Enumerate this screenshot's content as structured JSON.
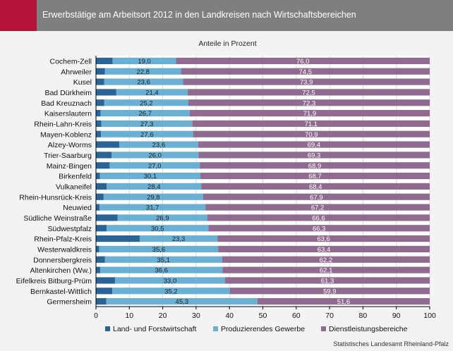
{
  "header": {
    "title": "Erwerbstätige am Arbeitsort 2012 in den Landkreisen nach Wirtschaftsbereichen"
  },
  "colors": {
    "accent": "#b5123a",
    "header_bg": "#7f7f7f",
    "background": "#f3f3f3"
  },
  "source": "Statistisches Landesamt Rheinland-Pfalz",
  "chart_data": {
    "type": "bar",
    "orientation": "horizontal",
    "stacked": true,
    "subtitle": "Anteile in Prozent",
    "xlim": [
      0,
      100
    ],
    "xticks": [
      0,
      10,
      20,
      30,
      40,
      50,
      60,
      70,
      80,
      90,
      100
    ],
    "grid": true,
    "legend_position": "bottom",
    "categories": [
      "Cochem-Zell",
      "Ahrweiler",
      "Kusel",
      "Bad Dürkheim",
      "Bad Kreuznach",
      "Kaiserslautern",
      "Rhein-Lahn-Kreis",
      "Mayen-Koblenz",
      "Alzey-Worms",
      "Trier-Saarburg",
      "Mainz-Bingen",
      "Birkenfeld",
      "Vulkaneifel",
      "Rhein-Hunsrück-Kreis",
      "Neuwied",
      "Südliche Weinstraße",
      "Südwestpfalz",
      "Rhein-Pfalz-Kreis",
      "Westerwaldkreis",
      "Donnersbergkreis",
      "Altenkirchen (Ww.)",
      "Eifelkreis Bitburg-Prüm",
      "Bernkastel-Wittlich",
      "Germersheim"
    ],
    "series": [
      {
        "name": "Land- und Forstwirtschaft",
        "color": "#2a6496",
        "show_labels": false,
        "values": [
          5.0,
          2.7,
          2.5,
          6.1,
          2.5,
          1.4,
          1.6,
          1.5,
          7.0,
          4.7,
          4.1,
          1.2,
          3.2,
          2.3,
          1.1,
          6.5,
          3.2,
          13.1,
          1.0,
          2.7,
          1.3,
          5.7,
          4.9,
          3.1
        ]
      },
      {
        "name": "Produzierendes Gewerbe",
        "color": "#6aafd4",
        "show_labels": true,
        "labels": [
          "19,0",
          "22,8",
          "23,6",
          "21,4",
          "25,2",
          "26,7",
          "27,3",
          "27,6",
          "23,6",
          "26,0",
          "27,0",
          "30,1",
          "28,4",
          "29,8",
          "31,7",
          "26,9",
          "30,5",
          "23,3",
          "35,6",
          "35,1",
          "36,6",
          "33,0",
          "35,2",
          "45,3"
        ],
        "values": [
          19.0,
          22.8,
          23.6,
          21.4,
          25.2,
          26.7,
          27.3,
          27.6,
          23.6,
          26.0,
          27.0,
          30.1,
          28.4,
          29.8,
          31.7,
          26.9,
          30.5,
          23.3,
          35.6,
          35.1,
          36.6,
          33.0,
          35.2,
          45.3
        ]
      },
      {
        "name": "Dienstleistungsbereiche",
        "color": "#8f6b8f",
        "show_labels": true,
        "labels": [
          "76,0",
          "74,5",
          "73,9",
          "72,5",
          "72,3",
          "71,9",
          "71,1",
          "70,9",
          "69,4",
          "69,3",
          "68,9",
          "68,7",
          "68,4",
          "67,9",
          "67,2",
          "66,6",
          "66,3",
          "63,6",
          "63,4",
          "62,2",
          "62,1",
          "61,3",
          "59,9",
          "51,6"
        ],
        "values": [
          76.0,
          74.5,
          73.9,
          72.5,
          72.3,
          71.9,
          71.1,
          70.9,
          69.4,
          69.3,
          68.9,
          68.7,
          68.4,
          67.9,
          67.2,
          66.6,
          66.3,
          63.6,
          63.4,
          62.2,
          62.1,
          61.3,
          59.9,
          51.6
        ]
      }
    ]
  }
}
